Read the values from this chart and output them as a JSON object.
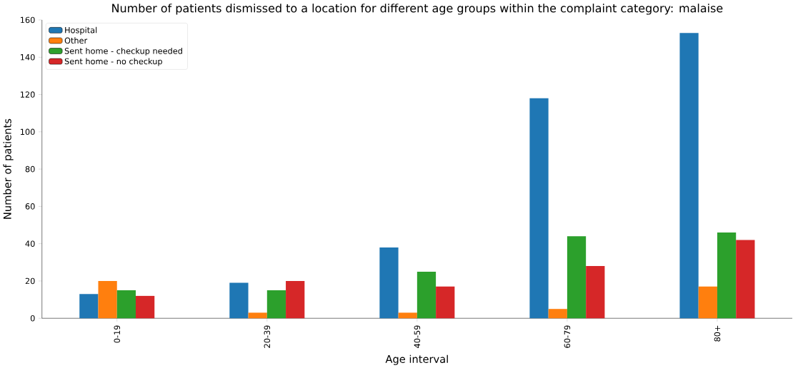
{
  "chart_data": {
    "type": "bar",
    "title": "Number of patients dismissed to a location for different age groups within the complaint category: malaise",
    "xlabel": "Age interval",
    "ylabel": "Number of patients",
    "categories": [
      "0-19",
      "20-39",
      "40-59",
      "60-79",
      "80+"
    ],
    "series": [
      {
        "name": "Hospital",
        "color": "#1f77b4",
        "values": [
          13,
          19,
          38,
          118,
          153
        ]
      },
      {
        "name": "Other",
        "color": "#ff7f0e",
        "values": [
          20,
          3,
          3,
          5,
          17
        ]
      },
      {
        "name": "Sent home - checkup needed",
        "color": "#2ca02c",
        "values": [
          15,
          15,
          25,
          44,
          46
        ]
      },
      {
        "name": "Sent home - no checkup",
        "color": "#d62728",
        "values": [
          12,
          20,
          17,
          28,
          42
        ]
      }
    ],
    "ylim": [
      0,
      160
    ],
    "yticks": [
      0,
      20,
      40,
      60,
      80,
      100,
      120,
      140,
      160
    ],
    "legend": "top left"
  }
}
